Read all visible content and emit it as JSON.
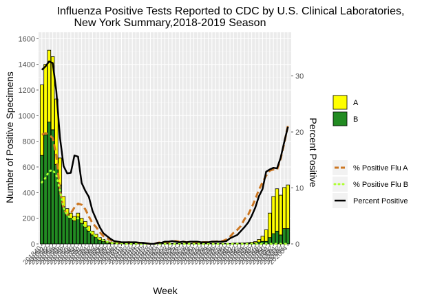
{
  "chart_data": {
    "type": "bar",
    "title_lines": [
      "Influenza Positive Tests Reported to CDC by U.S. Clinical Laboratories,",
      "New York Summary,2018-2019 Season"
    ],
    "xlabel": "Week",
    "ylabel": "Number of Positive Specimens",
    "y2label": "Percent Positive",
    "ylim": [
      0,
      1650
    ],
    "yticks": [
      0,
      200,
      400,
      600,
      800,
      1000,
      1200,
      1400,
      1600
    ],
    "y2lim": [
      0,
      37.8
    ],
    "y2ticks": [
      0,
      10,
      20,
      30
    ],
    "grid": true,
    "legend_position": "right",
    "x_tick_labels": [
      "201840",
      "201841",
      "201842",
      "201843",
      "201844",
      "201845",
      "201846",
      "201847",
      "201848",
      "201849",
      "201850",
      "201851",
      "201852",
      "201901",
      "201902",
      "201903",
      "201904",
      "201905",
      "201906",
      "201907",
      "201908",
      "201909",
      "201910",
      "201911",
      "201912",
      "201913",
      "201914",
      "201915",
      "201916",
      "201917",
      "201918",
      "201919",
      "201920",
      "201921",
      "201922",
      "201923",
      "201924",
      "201925",
      "201926",
      "201927",
      "201928",
      "201929",
      "201930",
      "201931",
      "201932",
      "201933",
      "201934",
      "201935",
      "201936",
      "201937",
      "201938",
      "201939",
      "201940",
      "201941",
      "201942",
      "201943",
      "201944",
      "201945",
      "201946",
      "201947",
      "201948",
      "201949",
      "201950",
      "201951",
      "201952",
      "202001",
      "202002",
      "202003",
      "202004"
    ],
    "bar_series": [
      {
        "name": "A",
        "color": "#ffff00",
        "values": [
          550,
          550,
          560,
          570,
          510,
          210,
          80,
          45,
          40,
          35,
          30,
          40,
          45,
          40,
          30,
          25,
          20,
          15,
          12,
          10,
          8,
          7,
          5,
          5,
          4,
          3,
          3,
          2,
          2,
          2,
          2,
          2,
          2,
          2,
          2,
          2,
          2,
          2,
          2,
          2,
          2,
          2,
          2,
          2,
          2,
          2,
          2,
          2,
          2,
          2,
          2,
          2,
          2,
          5,
          5,
          5,
          5,
          5,
          8,
          10,
          20,
          40,
          90,
          190,
          290,
          330,
          310,
          320,
          340
        ]
      },
      {
        "name": "B",
        "color": "#228b22",
        "values": [
          690,
          850,
          950,
          890,
          620,
          460,
          290,
          230,
          200,
          180,
          210,
          160,
          130,
          100,
          70,
          50,
          30,
          20,
          10,
          5,
          3,
          3,
          2,
          2,
          2,
          2,
          2,
          2,
          2,
          2,
          2,
          2,
          2,
          2,
          2,
          2,
          2,
          2,
          2,
          2,
          2,
          2,
          2,
          2,
          2,
          2,
          2,
          2,
          2,
          2,
          2,
          2,
          2,
          2,
          2,
          3,
          3,
          5,
          5,
          8,
          15,
          20,
          20,
          50,
          80,
          100,
          70,
          120,
          120
        ]
      }
    ],
    "line_series": [
      {
        "name": "% Positive Flu A",
        "color": "#cc7722",
        "style": "dashed",
        "values": [
          19.5,
          19.8,
          19.5,
          18.9,
          15.8,
          9.5,
          6.3,
          5.2,
          5.5,
          6.5,
          7.2,
          7.0,
          6.2,
          4.9,
          3.7,
          3.0,
          2.1,
          1.4,
          1.0,
          0.7,
          0.4,
          0.3,
          0.2,
          0.2,
          0.3,
          0.2,
          0.2,
          0.2,
          0.1,
          0.1,
          0.0,
          0.0,
          0.2,
          0.3,
          0.3,
          0.3,
          0.4,
          0.5,
          0.4,
          0.4,
          0.3,
          0.3,
          0.3,
          0.3,
          0.3,
          0.3,
          0.3,
          0.4,
          0.4,
          0.5,
          0.5,
          0.8,
          1.3,
          2.0,
          2.5,
          3.2,
          4.4,
          5.2,
          6.5,
          8.0,
          9.7,
          11.0,
          12.2,
          13.1,
          13.3,
          13.2,
          15.2,
          18.0,
          21.1
        ]
      },
      {
        "name": "% Positive Flu B",
        "color": "#adff2f",
        "style": "dotted",
        "values": [
          11.0,
          11.8,
          13.0,
          13.2,
          12.3,
          9.5,
          6.5,
          5.1,
          4.6,
          4.4,
          4.6,
          3.9,
          3.1,
          2.5,
          1.8,
          1.3,
          0.9,
          0.6,
          0.4,
          0.2,
          0.1,
          0.1,
          0.1,
          0.0,
          0.0,
          0.0,
          0.0,
          0.0,
          0.0,
          0.0,
          0.0,
          0.0,
          0.0,
          0.0,
          0.0,
          0.0,
          0.0,
          0.0,
          0.0,
          0.0,
          0.0,
          0.0,
          0.0,
          0.0,
          0.0,
          0.0,
          0.0,
          0.0,
          0.0,
          0.0,
          0.0,
          0.0,
          0.0,
          0.0,
          0.0,
          0.0,
          0.0,
          0.0,
          0.0,
          0.0,
          0.0,
          0.0,
          0.0,
          0.0,
          0.0,
          0.0,
          0.0,
          0.0,
          0.0
        ]
      },
      {
        "name": "Percent Positive",
        "color": "#000000",
        "style": "solid",
        "values": [
          31.1,
          31.7,
          32.6,
          32.3,
          27.3,
          19.0,
          13.9,
          12.6,
          12.7,
          15.8,
          15.6,
          10.9,
          9.5,
          8.4,
          5.9,
          4.4,
          3.0,
          1.9,
          1.4,
          0.9,
          0.5,
          0.4,
          0.3,
          0.3,
          0.3,
          0.3,
          0.3,
          0.2,
          0.2,
          0.1,
          0.0,
          0.0,
          0.2,
          0.2,
          0.4,
          0.4,
          0.5,
          0.4,
          0.3,
          0.4,
          0.3,
          0.4,
          0.4,
          0.4,
          0.3,
          0.3,
          0.3,
          0.4,
          0.4,
          0.4,
          0.4,
          0.5,
          1.0,
          1.3,
          1.6,
          2.3,
          3.0,
          3.8,
          5.0,
          6.5,
          8.5,
          9.8,
          12.9,
          13.3,
          13.6,
          13.5,
          15.4,
          18.2,
          20.9
        ]
      }
    ]
  }
}
